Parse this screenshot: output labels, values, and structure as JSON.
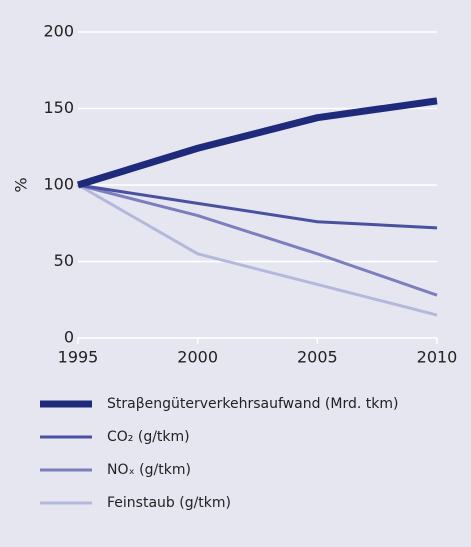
{
  "chart_data": {
    "type": "line",
    "ylabel": "%",
    "x": [
      1995,
      2000,
      2005,
      2010
    ],
    "xlim": [
      1995,
      2010
    ],
    "xticks": [
      1995,
      2000,
      2005,
      2010
    ],
    "ylim": [
      0,
      200
    ],
    "yticks": [
      0,
      50,
      100,
      150,
      200
    ],
    "grid": true,
    "series": [
      {
        "name": "Straβengüterverkehrsaufwand (Mrd. tkm)",
        "color": "#1f2a7a",
        "values": [
          100,
          124,
          144,
          155
        ]
      },
      {
        "name": "CO₂ (g/tkm)",
        "color": "#4a52a0",
        "values": [
          100,
          88,
          76,
          72
        ]
      },
      {
        "name": "NOₓ (g/tkm)",
        "color": "#7b7fbf",
        "values": [
          100,
          80,
          55,
          28
        ]
      },
      {
        "name": "Feinstaub (g/tkm)",
        "color": "#b5b8dd",
        "values": [
          100,
          55,
          35,
          15
        ]
      }
    ]
  }
}
